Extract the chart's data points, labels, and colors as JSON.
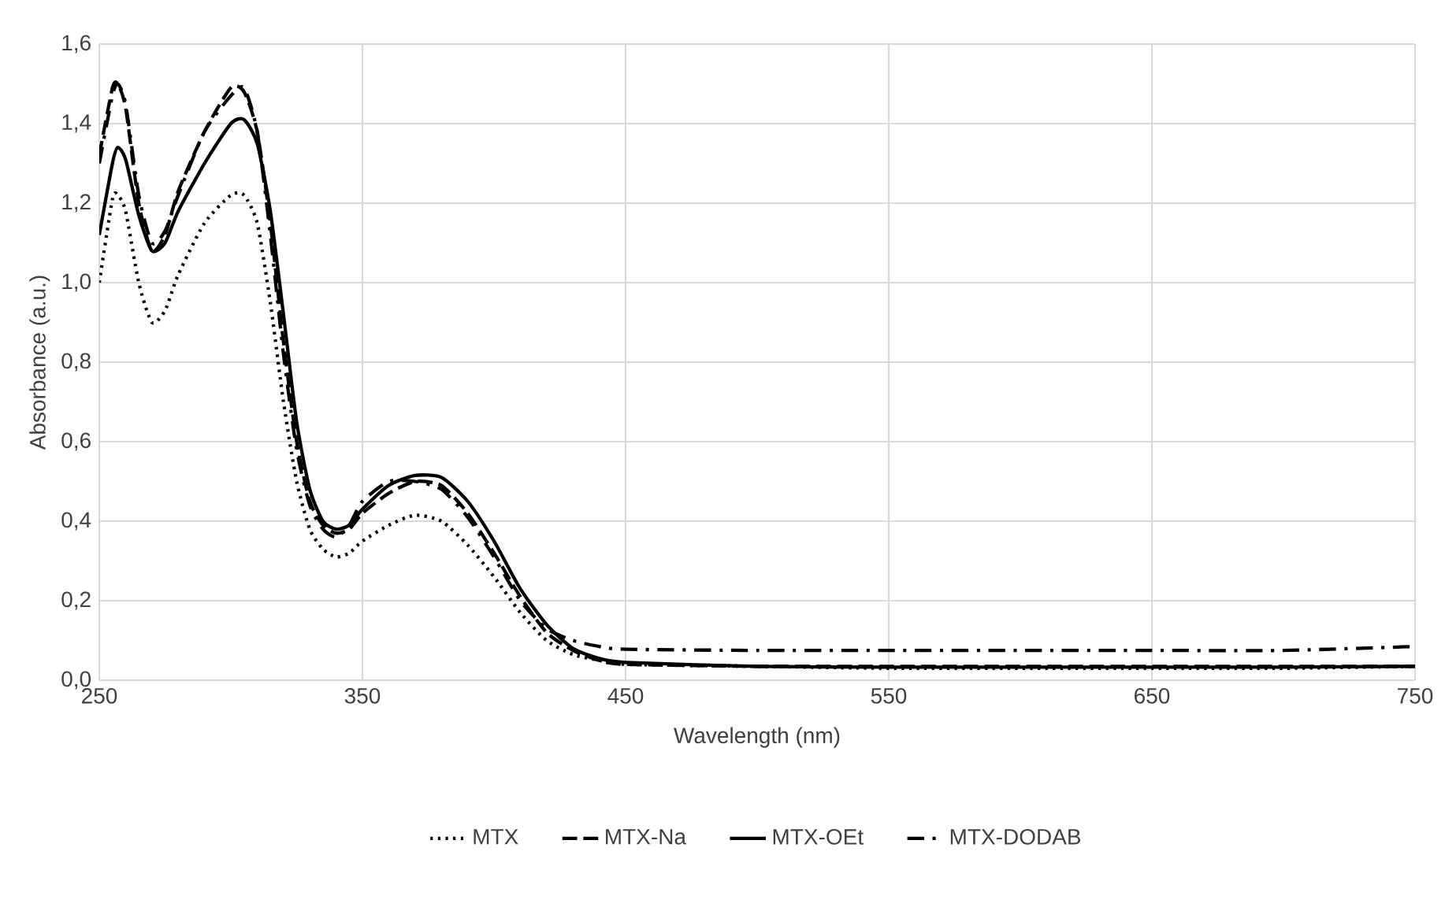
{
  "chart_data": {
    "type": "line",
    "xlabel": "Wavelength (nm)",
    "ylabel": "Absorbance (a.u.)",
    "x": [
      250,
      255,
      257,
      260,
      265,
      270,
      275,
      280,
      290,
      300,
      305,
      310,
      315,
      320,
      325,
      330,
      335,
      340,
      345,
      350,
      360,
      370,
      380,
      390,
      400,
      410,
      420,
      430,
      440,
      450,
      500,
      550,
      600,
      650,
      700,
      750
    ],
    "series": [
      {
        "name": "MTX",
        "color": "#000000",
        "line_style": "dotted",
        "values": [
          1.0,
          1.21,
          1.22,
          1.18,
          1.0,
          0.9,
          0.93,
          1.02,
          1.15,
          1.22,
          1.22,
          1.15,
          0.95,
          0.7,
          0.5,
          0.38,
          0.33,
          0.31,
          0.32,
          0.35,
          0.39,
          0.415,
          0.4,
          0.34,
          0.26,
          0.17,
          0.1,
          0.065,
          0.05,
          0.04,
          0.035,
          0.03,
          0.03,
          0.03,
          0.03,
          0.035
        ]
      },
      {
        "name": "MTX-Na",
        "color": "#000000",
        "line_style": "dashed",
        "values": [
          1.32,
          1.49,
          1.5,
          1.44,
          1.2,
          1.08,
          1.12,
          1.23,
          1.38,
          1.49,
          1.48,
          1.38,
          1.15,
          0.85,
          0.6,
          0.45,
          0.39,
          0.37,
          0.38,
          0.42,
          0.47,
          0.5,
          0.49,
          0.42,
          0.32,
          0.21,
          0.12,
          0.075,
          0.05,
          0.04,
          0.035,
          0.035,
          0.035,
          0.035,
          0.035,
          0.035
        ]
      },
      {
        "name": "MTX-OEt",
        "color": "#000000",
        "line_style": "solid",
        "values": [
          1.12,
          1.3,
          1.34,
          1.31,
          1.17,
          1.08,
          1.1,
          1.18,
          1.3,
          1.4,
          1.41,
          1.35,
          1.18,
          0.92,
          0.65,
          0.48,
          0.4,
          0.38,
          0.39,
          0.43,
          0.49,
          0.515,
          0.51,
          0.45,
          0.35,
          0.23,
          0.14,
          0.08,
          0.055,
          0.045,
          0.035,
          0.033,
          0.033,
          0.033,
          0.033,
          0.035
        ]
      },
      {
        "name": "MTX-DODAB",
        "color": "#000000",
        "line_style": "dashdot",
        "values": [
          1.3,
          1.47,
          1.5,
          1.45,
          1.22,
          1.1,
          1.13,
          1.22,
          1.38,
          1.47,
          1.49,
          1.38,
          1.12,
          0.82,
          0.58,
          0.44,
          0.38,
          0.36,
          0.39,
          0.45,
          0.5,
          0.5,
          0.48,
          0.41,
          0.31,
          0.2,
          0.13,
          0.1,
          0.085,
          0.078,
          0.075,
          0.075,
          0.075,
          0.075,
          0.075,
          0.085
        ]
      }
    ],
    "xlim": [
      250,
      750
    ],
    "xticks": [
      250,
      350,
      450,
      550,
      650,
      750
    ],
    "ylim": [
      0,
      1.6
    ],
    "yticks": [
      {
        "value": 0,
        "label": "0,0"
      },
      {
        "value": 0.2,
        "label": "0,2"
      },
      {
        "value": 0.4,
        "label": "0,4"
      },
      {
        "value": 0.6,
        "label": "0,6"
      },
      {
        "value": 0.8,
        "label": "0,8"
      },
      {
        "value": 1.0,
        "label": "1,0"
      },
      {
        "value": 1.2,
        "label": "1,2"
      },
      {
        "value": 1.4,
        "label": "1,4"
      },
      {
        "value": 1.6,
        "label": "1,6"
      }
    ],
    "grid": true,
    "legend": "bottom",
    "marker": "none"
  }
}
